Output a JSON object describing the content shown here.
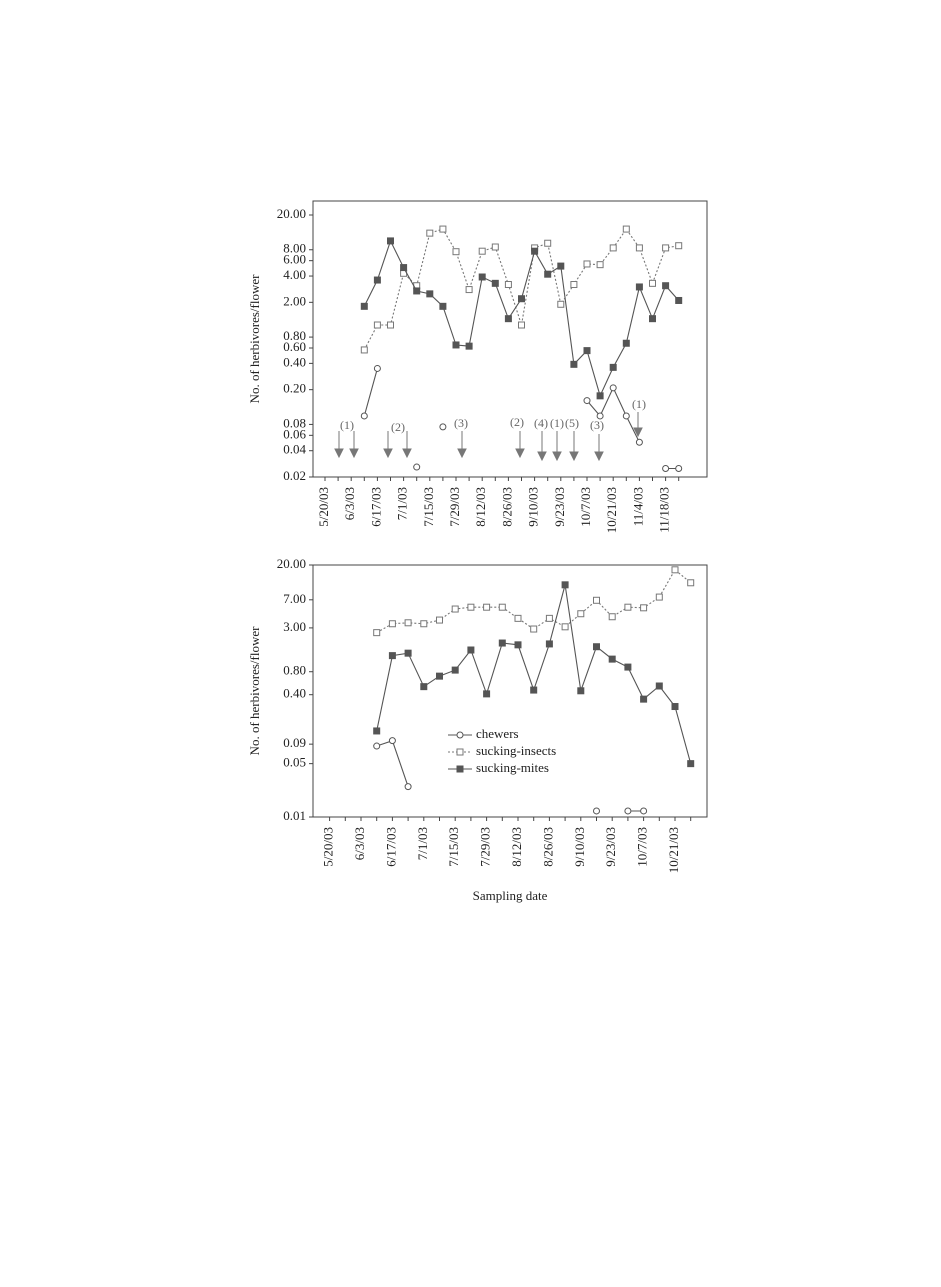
{
  "chart_data": [
    {
      "type": "line",
      "y_label": "No. of herbivores/flower",
      "log_scale": true,
      "categories": [
        "5/20/03",
        null,
        "6/3/03",
        null,
        "6/17/03",
        null,
        "7/1/03",
        null,
        "7/15/03",
        null,
        "7/29/03",
        null,
        "8/12/03",
        null,
        "8/26/03",
        null,
        "9/10/03",
        null,
        "9/23/03",
        null,
        "10/7/03",
        null,
        "10/21/03",
        null,
        "11/4/03",
        null,
        "11/18/03",
        null
      ],
      "series": [
        {
          "name": "chewers",
          "color": "#555555",
          "marker": "circle",
          "line_style": "solid",
          "filled": false,
          "values": [
            null,
            null,
            null,
            0.1,
            0.35,
            null,
            null,
            0.026,
            null,
            0.075,
            null,
            null,
            null,
            null,
            null,
            null,
            null,
            null,
            null,
            null,
            0.15,
            0.1,
            0.21,
            0.1,
            0.05,
            null,
            0.025,
            0.025
          ]
        },
        {
          "name": "sucking-insects",
          "color": "#777777",
          "marker": "square",
          "line_style": "dotted",
          "filled": false,
          "values": [
            null,
            null,
            null,
            0.57,
            1.1,
            1.1,
            4.3,
            3.1,
            12.4,
            13.8,
            7.6,
            2.8,
            7.7,
            8.6,
            3.2,
            1.1,
            8.4,
            9.5,
            1.9,
            3.2,
            5.5,
            5.4,
            8.4,
            13.8,
            8.4,
            3.3,
            8.4,
            8.9
          ]
        },
        {
          "name": "sucking-mites",
          "color": "#555555",
          "marker": "square",
          "line_style": "solid",
          "filled": true,
          "values": [
            null,
            null,
            null,
            1.8,
            3.6,
            10.1,
            5.0,
            2.7,
            2.5,
            1.8,
            0.65,
            0.63,
            3.9,
            3.3,
            1.3,
            2.2,
            7.7,
            4.2,
            5.2,
            0.39,
            0.56,
            0.17,
            0.36,
            0.68,
            3.0,
            1.3,
            3.1,
            2.1
          ]
        }
      ],
      "ylim": [
        0.02,
        20
      ],
      "yticks": [
        0.02,
        0.04,
        0.06,
        0.08,
        {
          "value": 0.2,
          "label": "0.20"
        },
        {
          "value": 0.4,
          "label": "0.40"
        },
        {
          "value": 0.6,
          "label": "0.60"
        },
        {
          "value": 0.8,
          "label": "0.80"
        },
        {
          "value": 2,
          "label": "2.00"
        },
        {
          "value": 4,
          "label": "4.00"
        },
        {
          "value": 6,
          "label": "6.00"
        },
        {
          "value": 8,
          "label": "8.00"
        },
        {
          "value": 20,
          "label": "20.00"
        }
      ],
      "annotations": [
        "(1)",
        "(2)",
        "(3)",
        "(2)",
        "(4)",
        "(1)",
        "(5)",
        "(3)",
        "(1)"
      ]
    },
    {
      "type": "line",
      "y_label": "No. of herbivores/flower",
      "x_label": "Sampling date",
      "log_scale": true,
      "legend": "center",
      "categories": [
        "5/20/03",
        null,
        "6/3/03",
        null,
        "6/17/03",
        null,
        "7/1/03",
        null,
        "7/15/03",
        null,
        "7/29/03",
        null,
        "8/12/03",
        null,
        "8/26/03",
        null,
        "9/10/03",
        null,
        "9/23/03",
        null,
        "10/7/03",
        null,
        "10/21/03",
        null
      ],
      "series": [
        {
          "name": "chewers",
          "color": "#555555",
          "marker": "circle",
          "line_style": "solid",
          "filled": false,
          "values": [
            null,
            null,
            null,
            0.085,
            0.1,
            0.025,
            null,
            null,
            null,
            null,
            null,
            null,
            null,
            null,
            null,
            null,
            null,
            0.012,
            null,
            0.012,
            0.012,
            null,
            null,
            null
          ]
        },
        {
          "name": "sucking-insects",
          "color": "#777777",
          "marker": "square",
          "line_style": "dotted",
          "filled": false,
          "values": [
            null,
            null,
            null,
            2.6,
            3.4,
            3.5,
            3.4,
            3.8,
            5.3,
            5.6,
            5.6,
            5.6,
            4.0,
            2.9,
            4.0,
            3.1,
            4.6,
            6.9,
            4.2,
            5.6,
            5.5,
            7.6,
            17.3,
            11.7
          ]
        },
        {
          "name": "sucking-mites",
          "color": "#555555",
          "marker": "square",
          "line_style": "solid",
          "filled": true,
          "values": [
            null,
            null,
            null,
            0.134,
            1.3,
            1.4,
            0.51,
            0.7,
            0.84,
            1.54,
            0.41,
            1.9,
            1.8,
            0.46,
            1.85,
            11.0,
            0.45,
            1.7,
            1.17,
            0.92,
            0.35,
            0.52,
            0.28,
            0.05
          ]
        }
      ],
      "ylim": [
        0.01,
        20
      ],
      "yticks": [
        {
          "value": 0.01,
          "label": "0.01"
        },
        0.05,
        0.09,
        {
          "value": 0.4,
          "label": "0.40"
        },
        {
          "value": 0.8,
          "label": "0.80"
        },
        {
          "value": 3,
          "label": "3.00"
        },
        {
          "value": 7,
          "label": "7.00"
        },
        {
          "value": 20,
          "label": "20.00"
        }
      ]
    }
  ]
}
